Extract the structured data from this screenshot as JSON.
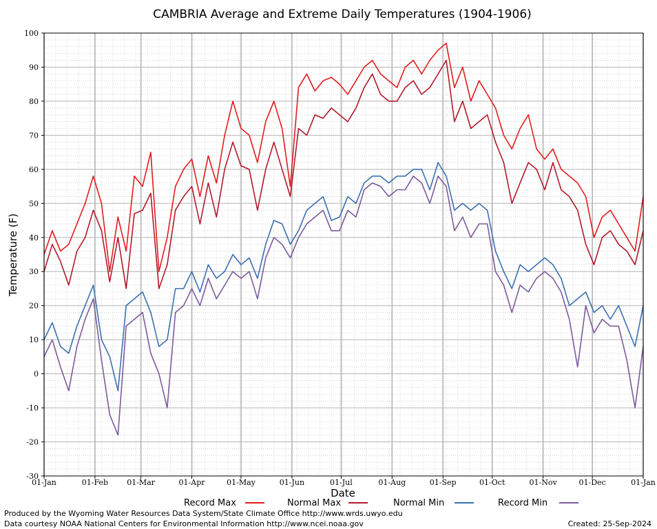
{
  "chart_data": {
    "type": "line",
    "title": "CAMBRIA Average and Extreme Daily Temperatures (1904-1906)",
    "xlabel": "Date",
    "ylabel": "Temperature (F)",
    "ylim": [
      -30,
      100
    ],
    "yticks": [
      "100",
      "90",
      "80",
      "70",
      "60",
      "50",
      "40",
      "30",
      "20",
      "10",
      "0",
      "-10",
      "-20",
      "-30"
    ],
    "ytick_values": [
      100,
      90,
      80,
      70,
      60,
      50,
      40,
      30,
      20,
      10,
      0,
      -10,
      -20,
      -30
    ],
    "xlim": [
      1,
      366
    ],
    "xticks": [
      "01-Jan",
      "01-Feb",
      "01-Mar",
      "01-Apr",
      "01-May",
      "01-Jun",
      "01-Jul",
      "01-Aug",
      "01-Sep",
      "01-Oct",
      "01-Nov",
      "01-Dec",
      "01-Jan"
    ],
    "xtick_days": [
      1,
      32,
      60,
      91,
      121,
      152,
      182,
      213,
      244,
      274,
      305,
      335,
      366
    ],
    "x_unit": "day of year",
    "grid": true,
    "legend_position": "bottom",
    "sample_every_days": 5,
    "x": [
      1,
      6,
      11,
      16,
      21,
      26,
      31,
      36,
      41,
      46,
      51,
      56,
      61,
      66,
      71,
      76,
      81,
      86,
      91,
      96,
      101,
      106,
      111,
      116,
      121,
      126,
      131,
      136,
      141,
      146,
      151,
      156,
      161,
      166,
      171,
      176,
      181,
      186,
      191,
      196,
      201,
      206,
      211,
      216,
      221,
      226,
      231,
      236,
      241,
      246,
      251,
      256,
      261,
      266,
      271,
      276,
      281,
      286,
      291,
      296,
      301,
      306,
      311,
      316,
      321,
      326,
      331,
      336,
      341,
      346,
      351,
      356,
      361,
      366
    ],
    "series": [
      {
        "name": "Record Max",
        "color": "#e31a1c",
        "values": [
          35,
          42,
          36,
          38,
          44,
          50,
          58,
          50,
          30,
          46,
          36,
          58,
          55,
          65,
          30,
          40,
          55,
          60,
          63,
          52,
          64,
          56,
          70,
          80,
          72,
          70,
          62,
          74,
          80,
          72,
          55,
          84,
          88,
          83,
          86,
          87,
          85,
          82,
          86,
          90,
          92,
          88,
          86,
          84,
          90,
          92,
          88,
          92,
          95,
          97,
          84,
          90,
          80,
          86,
          82,
          78,
          70,
          66,
          72,
          76,
          66,
          63,
          66,
          60,
          58,
          56,
          52,
          40,
          46,
          48,
          44,
          40,
          36,
          52
        ]
      },
      {
        "name": "Normal Max",
        "color": "#b2182b",
        "values": [
          30,
          38,
          33,
          26,
          36,
          40,
          48,
          42,
          27,
          40,
          25,
          47,
          48,
          53,
          25,
          32,
          48,
          52,
          55,
          44,
          56,
          46,
          60,
          68,
          61,
          60,
          48,
          60,
          68,
          60,
          52,
          72,
          70,
          76,
          75,
          78,
          76,
          74,
          78,
          84,
          88,
          82,
          80,
          80,
          84,
          86,
          82,
          84,
          88,
          92,
          74,
          80,
          72,
          74,
          76,
          68,
          62,
          50,
          56,
          62,
          60,
          54,
          62,
          54,
          52,
          48,
          38,
          32,
          40,
          42,
          38,
          36,
          32,
          42
        ]
      },
      {
        "name": "Normal Min",
        "color": "#3a6fb0",
        "values": [
          10,
          15,
          8,
          6,
          14,
          20,
          26,
          10,
          5,
          -5,
          20,
          22,
          24,
          18,
          8,
          10,
          25,
          25,
          30,
          24,
          32,
          28,
          30,
          35,
          32,
          34,
          28,
          38,
          45,
          44,
          38,
          42,
          48,
          50,
          52,
          45,
          46,
          52,
          50,
          56,
          58,
          58,
          56,
          58,
          58,
          60,
          60,
          54,
          62,
          58,
          48,
          50,
          48,
          50,
          48,
          36,
          30,
          25,
          32,
          30,
          32,
          34,
          32,
          28,
          20,
          22,
          24,
          18,
          20,
          16,
          20,
          14,
          8,
          20
        ]
      },
      {
        "name": "Record Min",
        "color": "#7b5a9a",
        "values": [
          5,
          10,
          2,
          -5,
          8,
          16,
          22,
          4,
          -12,
          -18,
          14,
          16,
          18,
          6,
          0,
          -10,
          18,
          20,
          25,
          20,
          28,
          22,
          26,
          30,
          28,
          30,
          22,
          34,
          40,
          38,
          34,
          40,
          44,
          46,
          48,
          42,
          42,
          48,
          46,
          54,
          56,
          55,
          52,
          54,
          54,
          58,
          56,
          50,
          58,
          55,
          42,
          46,
          40,
          44,
          44,
          30,
          26,
          18,
          26,
          24,
          28,
          30,
          28,
          24,
          16,
          2,
          20,
          12,
          16,
          14,
          14,
          4,
          -10,
          8
        ]
      }
    ]
  },
  "legend": [
    {
      "label": "Record Max",
      "color": "#e31a1c"
    },
    {
      "label": "Normal Max",
      "color": "#b2182b"
    },
    {
      "label": "Normal Min",
      "color": "#3a6fb0"
    },
    {
      "label": "Record Min",
      "color": "#7b5a9a"
    }
  ],
  "footer": {
    "produced": "Produced by the Wyoming Water Resources Data System/State Climate Office http://www.wrds.uwyo.edu",
    "courtesy": "Data courtesy NOAA National Centers for Environmental Information http://www.ncei.noaa.gov",
    "created": "Created:  25-Sep-2024"
  }
}
